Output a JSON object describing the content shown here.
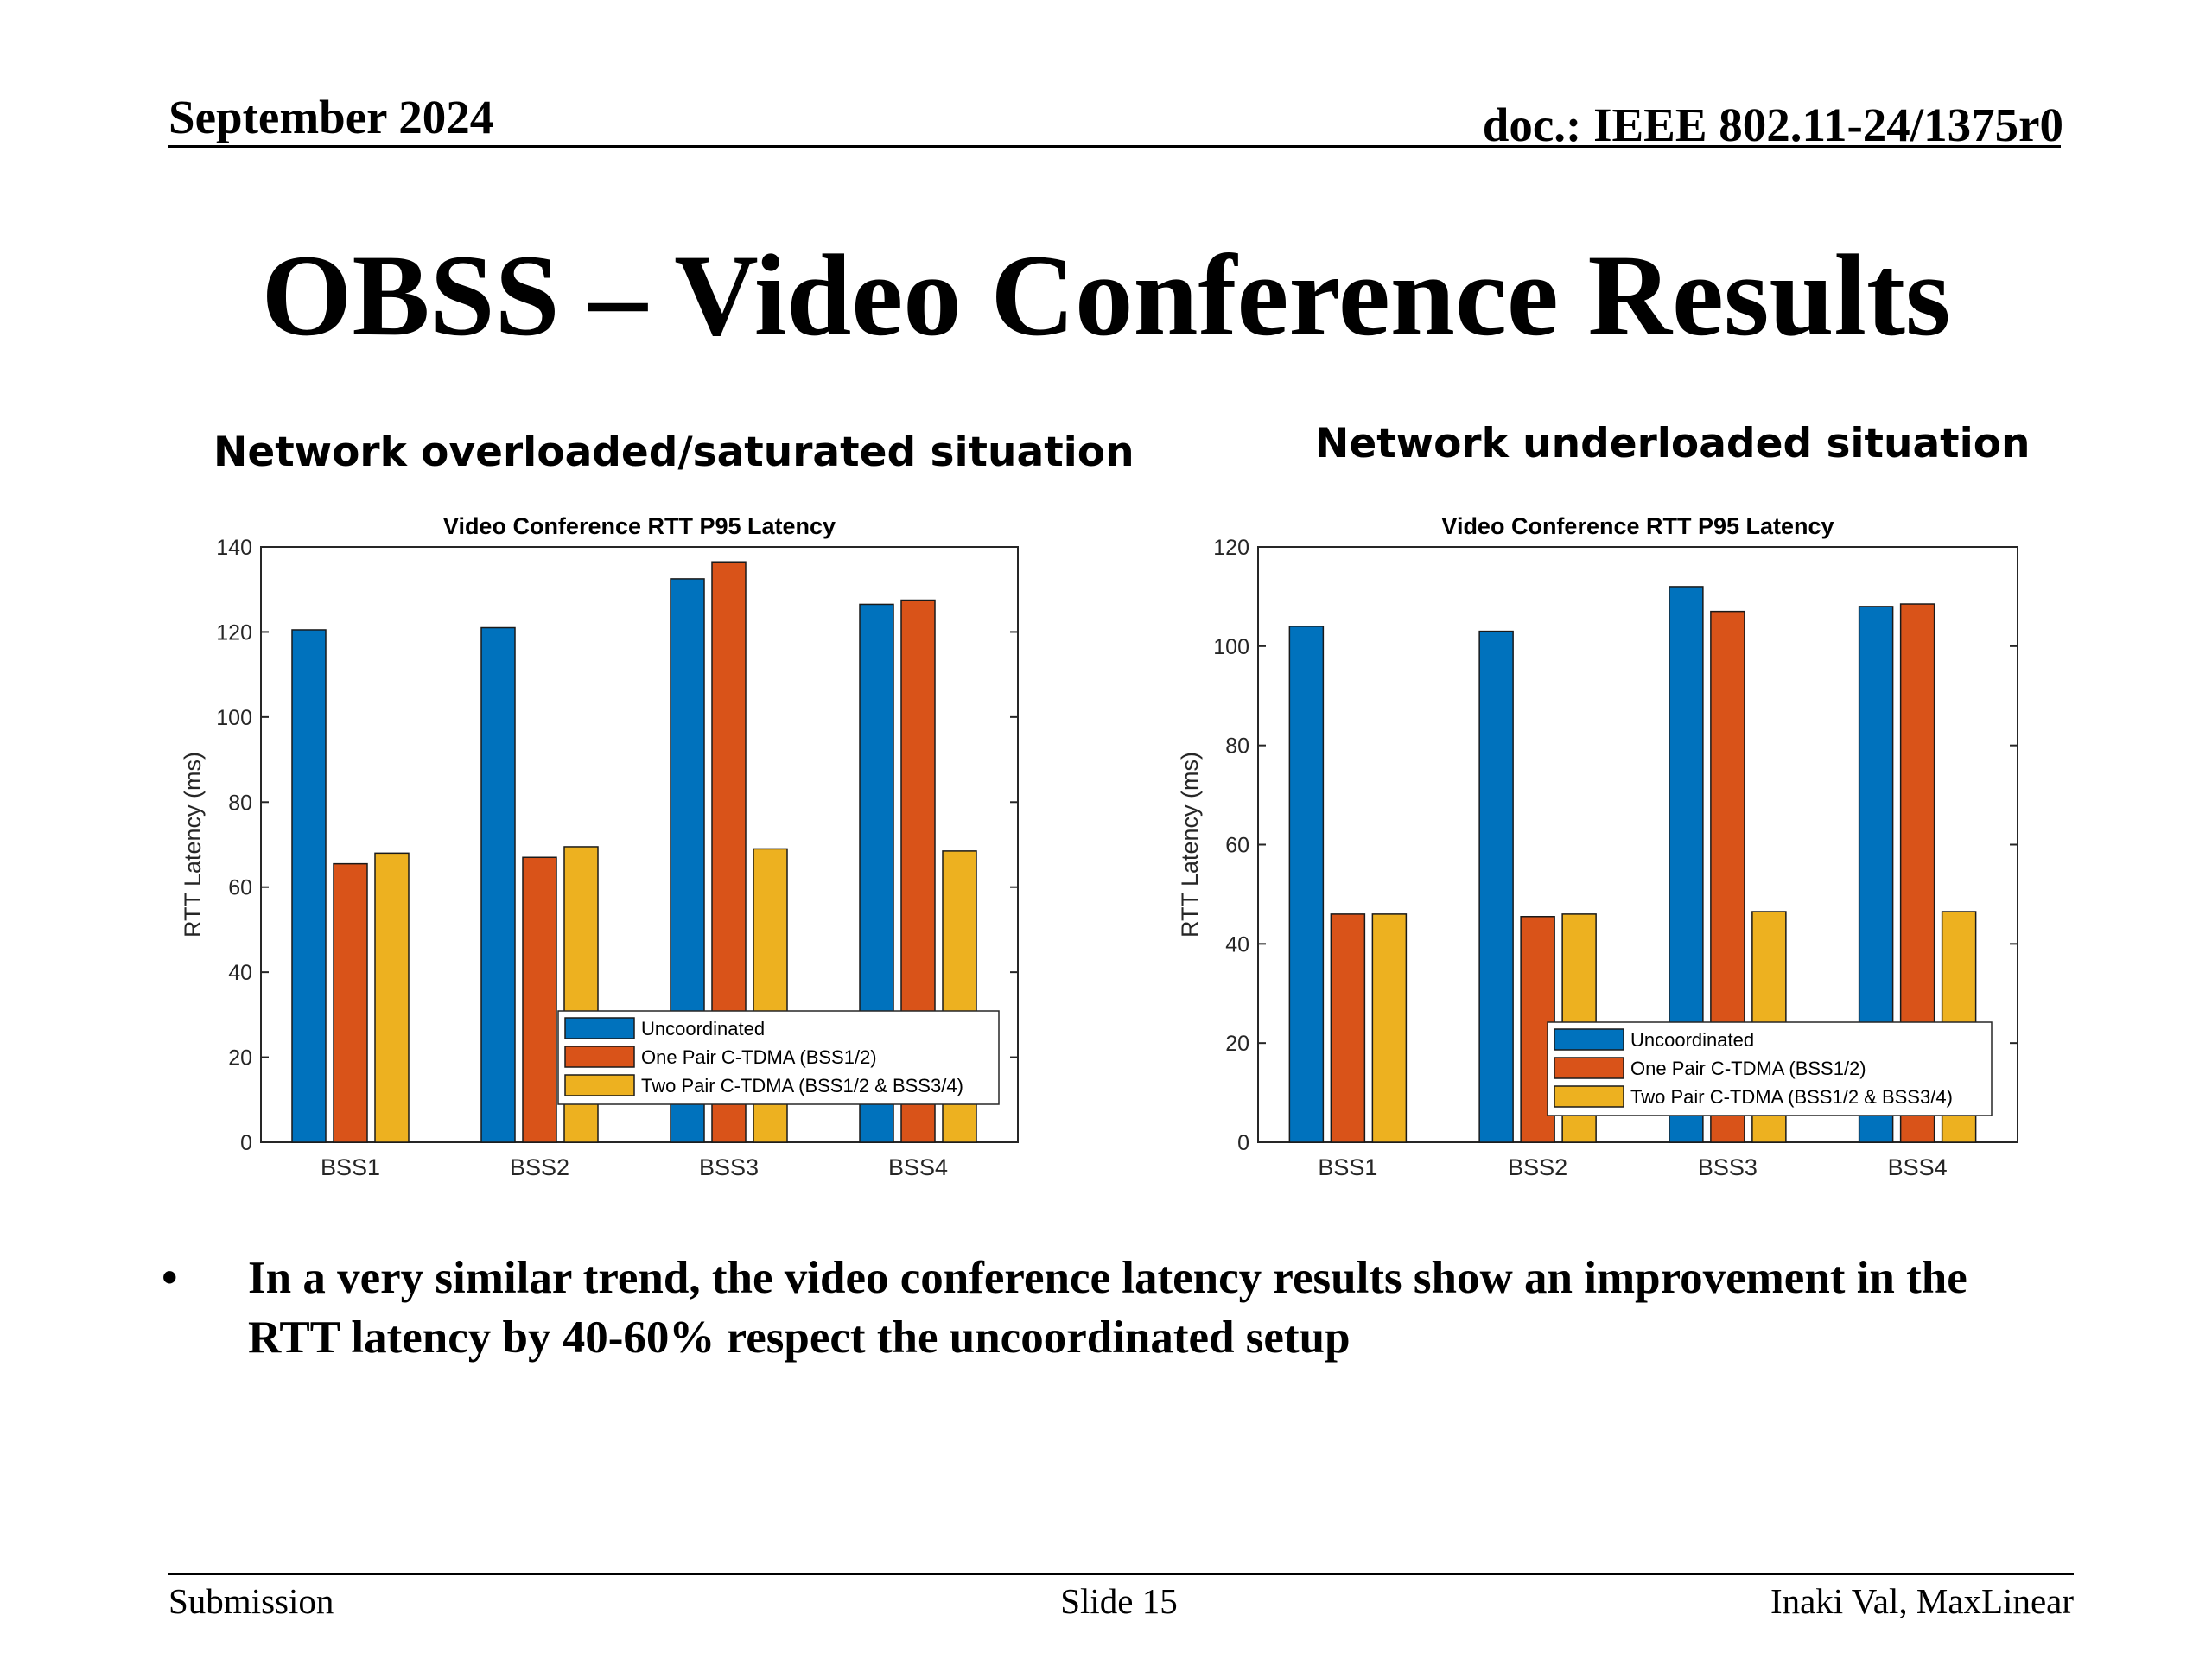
{
  "header": {
    "date": "September 2024",
    "doc": "doc.: IEEE 802.11-24/1375r0"
  },
  "title": "OBSS – Video Conference Results",
  "subtitles": {
    "left": "Network overloaded/saturated situation",
    "right": "Network underloaded situation"
  },
  "chart_data": [
    {
      "type": "bar",
      "title": "Video Conference RTT P95 Latency",
      "xlabel": "",
      "ylabel": "RTT Latency (ms)",
      "ylim": [
        0,
        140
      ],
      "yticks": [
        0,
        20,
        40,
        60,
        80,
        100,
        120,
        140
      ],
      "categories": [
        "BSS1",
        "BSS2",
        "BSS3",
        "BSS4"
      ],
      "legend_position": "bottom-right",
      "grid": false,
      "series": [
        {
          "name": "Uncoordinated",
          "color": "#0072BD",
          "values": [
            120.5,
            121,
            132.5,
            126.5
          ]
        },
        {
          "name": "One Pair C-TDMA (BSS1/2)",
          "color": "#D95319",
          "values": [
            65.5,
            67,
            136.5,
            127.5
          ]
        },
        {
          "name": "Two Pair C-TDMA (BSS1/2 & BSS3/4)",
          "color": "#EDB120",
          "values": [
            68,
            69.5,
            69,
            68.5
          ]
        }
      ]
    },
    {
      "type": "bar",
      "title": "Video Conference RTT P95 Latency",
      "xlabel": "",
      "ylabel": "RTT Latency (ms)",
      "ylim": [
        0,
        120
      ],
      "yticks": [
        0,
        20,
        40,
        60,
        80,
        100,
        120
      ],
      "categories": [
        "BSS1",
        "BSS2",
        "BSS3",
        "BSS4"
      ],
      "legend_position": "bottom-right",
      "grid": false,
      "series": [
        {
          "name": "Uncoordinated",
          "color": "#0072BD",
          "values": [
            104,
            103,
            112,
            108
          ]
        },
        {
          "name": "One Pair C-TDMA (BSS1/2)",
          "color": "#D95319",
          "values": [
            46,
            45.5,
            107,
            108.5
          ]
        },
        {
          "name": "Two Pair C-TDMA (BSS1/2 & BSS3/4)",
          "color": "#EDB120",
          "values": [
            46,
            46,
            46.5,
            46.5
          ]
        }
      ]
    }
  ],
  "bullet": {
    "symbol": "•",
    "text": "In a very similar trend, the video conference latency results show an improvement in the RTT latency by 40-60% respect the uncoordinated setup"
  },
  "footer": {
    "left": "Submission",
    "center": "Slide 15",
    "right": "Inaki Val, MaxLinear"
  }
}
